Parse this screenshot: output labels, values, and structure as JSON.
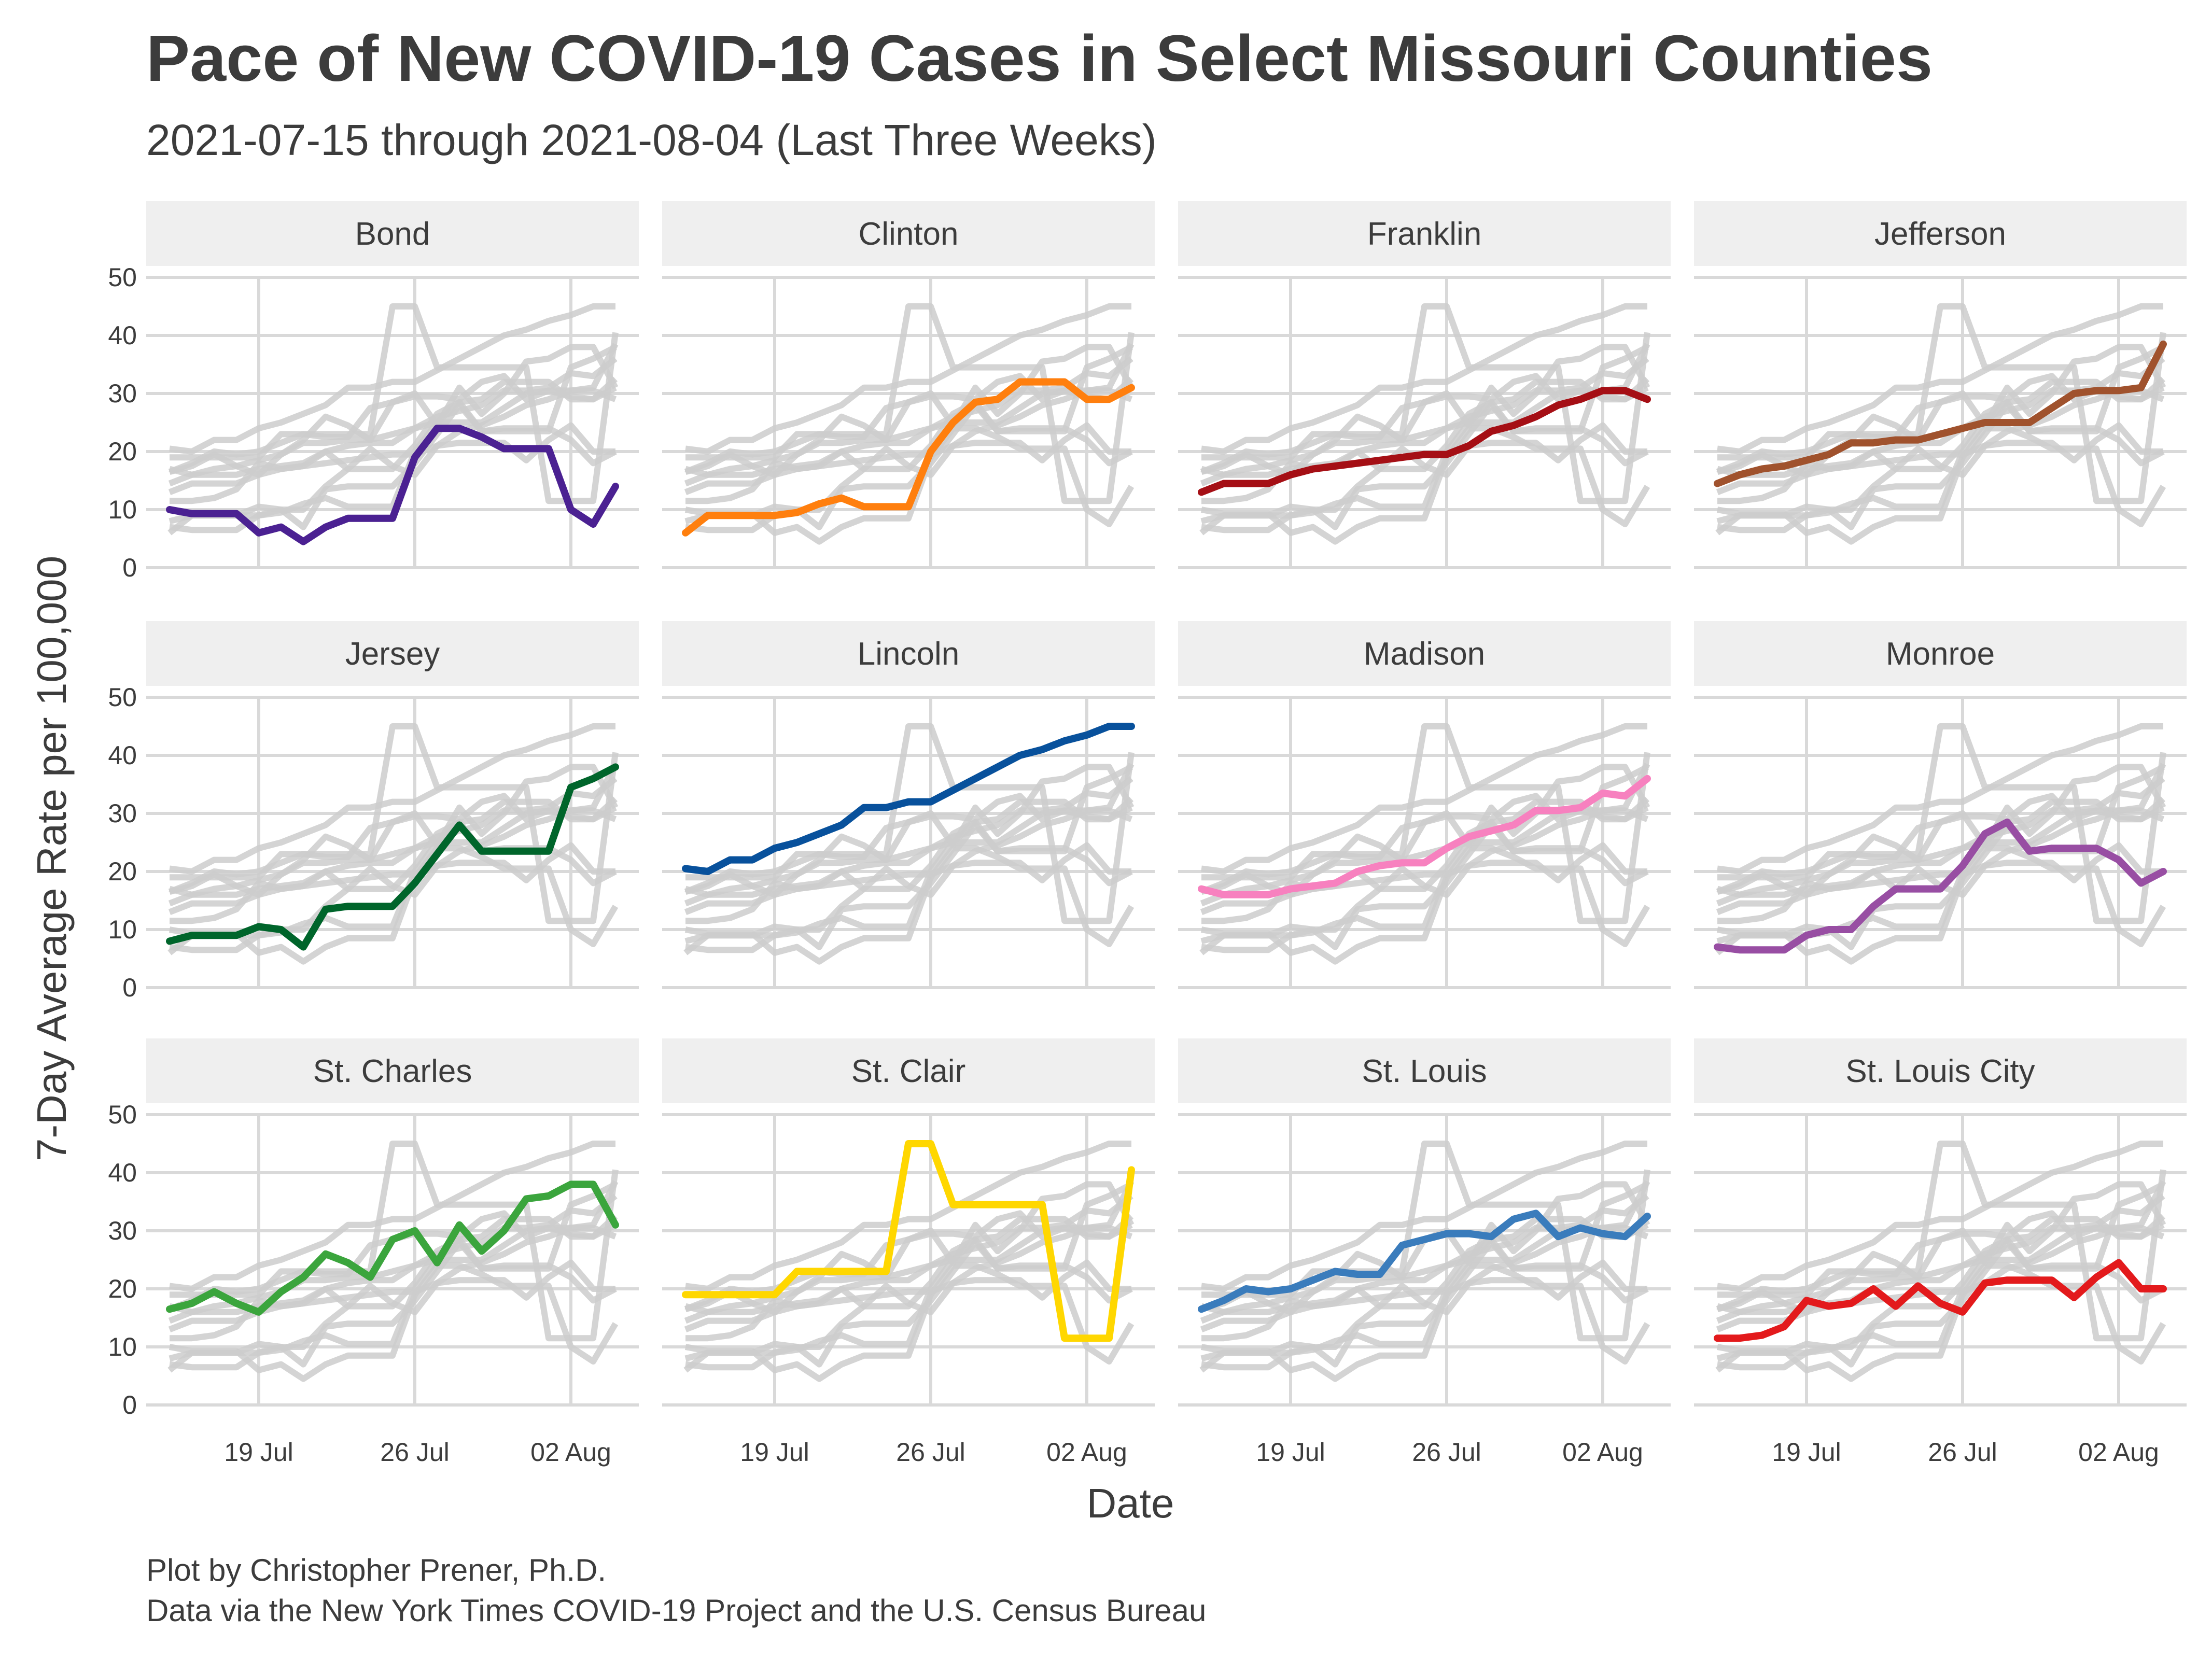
{
  "title": "Pace of New COVID-19 Cases in Select Missouri Counties",
  "subtitle": "2021-07-15 through 2021-08-04 (Last Three Weeks)",
  "xlabel": "Date",
  "ylabel": "7-Day Average Rate per 100,000",
  "caption": [
    "Plot by Christopher Prener, Ph.D.",
    "Data via the New York Times COVID-19 Project and the U.S. Census Bureau"
  ],
  "chart_data": {
    "type": "line",
    "layout": "small-multiples",
    "x": [
      "2021-07-15",
      "2021-07-16",
      "2021-07-17",
      "2021-07-18",
      "2021-07-19",
      "2021-07-20",
      "2021-07-21",
      "2021-07-22",
      "2021-07-23",
      "2021-07-24",
      "2021-07-25",
      "2021-07-26",
      "2021-07-27",
      "2021-07-28",
      "2021-07-29",
      "2021-07-30",
      "2021-07-31",
      "2021-08-01",
      "2021-08-02",
      "2021-08-03",
      "2021-08-04"
    ],
    "x_ticks": [
      {
        "date": "2021-07-19",
        "label": "19 Jul"
      },
      {
        "date": "2021-07-26",
        "label": "26 Jul"
      },
      {
        "date": "2021-08-02",
        "label": "02 Aug"
      }
    ],
    "y_ticks": [
      0,
      10,
      20,
      30,
      40,
      50
    ],
    "ylim": [
      0,
      50
    ],
    "grid": true,
    "background_series_color": "#cccccc",
    "series": [
      {
        "name": "Bond",
        "color": "#4b2192",
        "values": [
          10,
          9.3,
          9.3,
          9.3,
          6,
          7,
          4.5,
          7,
          8.5,
          8.5,
          8.5,
          19,
          24,
          24,
          22.5,
          20.5,
          20.5,
          20.5,
          10,
          7.5,
          14
        ]
      },
      {
        "name": "Clinton",
        "color": "#ff7f0e",
        "values": [
          6,
          9,
          9,
          9,
          9,
          9.5,
          11,
          12,
          10.5,
          10.5,
          10.5,
          20,
          25,
          28.5,
          29,
          32,
          32,
          32,
          29,
          29,
          31
        ]
      },
      {
        "name": "Franklin",
        "color": "#a50f15",
        "values": [
          13,
          14.5,
          14.5,
          14.5,
          16,
          17,
          17.5,
          18,
          18.5,
          19,
          19.5,
          19.5,
          21,
          23.5,
          24.5,
          26,
          28,
          29,
          30.5,
          30.5,
          29
        ]
      },
      {
        "name": "Jefferson",
        "color": "#a0522d",
        "values": [
          14.5,
          16,
          17,
          17.5,
          18.5,
          19.5,
          21.5,
          21.5,
          22,
          22,
          23,
          24,
          25,
          25,
          25,
          27.5,
          30,
          30.5,
          30.5,
          31,
          38.5
        ]
      },
      {
        "name": "Jersey",
        "color": "#00652b",
        "values": [
          8,
          9,
          9,
          9,
          10.5,
          10,
          7,
          13.5,
          14,
          14,
          14,
          18,
          23,
          28,
          23.5,
          23.5,
          23.5,
          23.5,
          34.5,
          36,
          38
        ]
      },
      {
        "name": "Lincoln",
        "color": "#08519c",
        "values": [
          20.5,
          20,
          22,
          22,
          24,
          25,
          26.5,
          28,
          31,
          31,
          32,
          32,
          34,
          36,
          38,
          40,
          41,
          42.5,
          43.5,
          45,
          45
        ]
      },
      {
        "name": "Madison",
        "color": "#f781bf",
        "values": [
          17,
          16,
          16,
          16,
          17,
          17.5,
          18,
          20,
          21,
          21.5,
          21.5,
          24,
          26,
          27,
          28,
          30.5,
          30.5,
          31,
          33.5,
          33,
          36
        ]
      },
      {
        "name": "Monroe",
        "color": "#984ea3",
        "values": [
          7,
          6.5,
          6.5,
          6.5,
          9,
          10,
          10,
          14,
          17,
          17,
          17,
          21,
          26.5,
          28.5,
          23.5,
          24,
          24,
          24,
          22,
          18,
          20
        ]
      },
      {
        "name": "St. Charles",
        "color": "#3ba53d",
        "values": [
          16.5,
          17.5,
          19.5,
          17.5,
          16,
          19.5,
          22,
          26,
          24.5,
          22,
          28.5,
          30,
          24.5,
          31,
          26.5,
          30,
          35.5,
          36,
          38,
          38,
          31
        ]
      },
      {
        "name": "St. Clair",
        "color": "#ffd700",
        "values": [
          19,
          19,
          19,
          19,
          19,
          23,
          23,
          23,
          23,
          23,
          45,
          45,
          34.5,
          34.5,
          34.5,
          34.5,
          34.5,
          11.5,
          11.5,
          11.5,
          40.5
        ]
      },
      {
        "name": "St. Louis",
        "color": "#3a7cbc",
        "values": [
          16.5,
          18,
          20,
          19.5,
          20,
          21.5,
          23,
          22.5,
          22.5,
          27.5,
          28.5,
          29.5,
          29.5,
          29,
          32,
          33,
          29,
          30.5,
          29.5,
          29,
          32.5
        ]
      },
      {
        "name": "St. Louis City",
        "color": "#e31a1c",
        "values": [
          11.5,
          11.5,
          12,
          13.5,
          18,
          17,
          17.5,
          20,
          17,
          20.5,
          17.5,
          16,
          21,
          21.5,
          21.5,
          21.5,
          18.5,
          22,
          24.5,
          20,
          20
        ]
      }
    ]
  }
}
